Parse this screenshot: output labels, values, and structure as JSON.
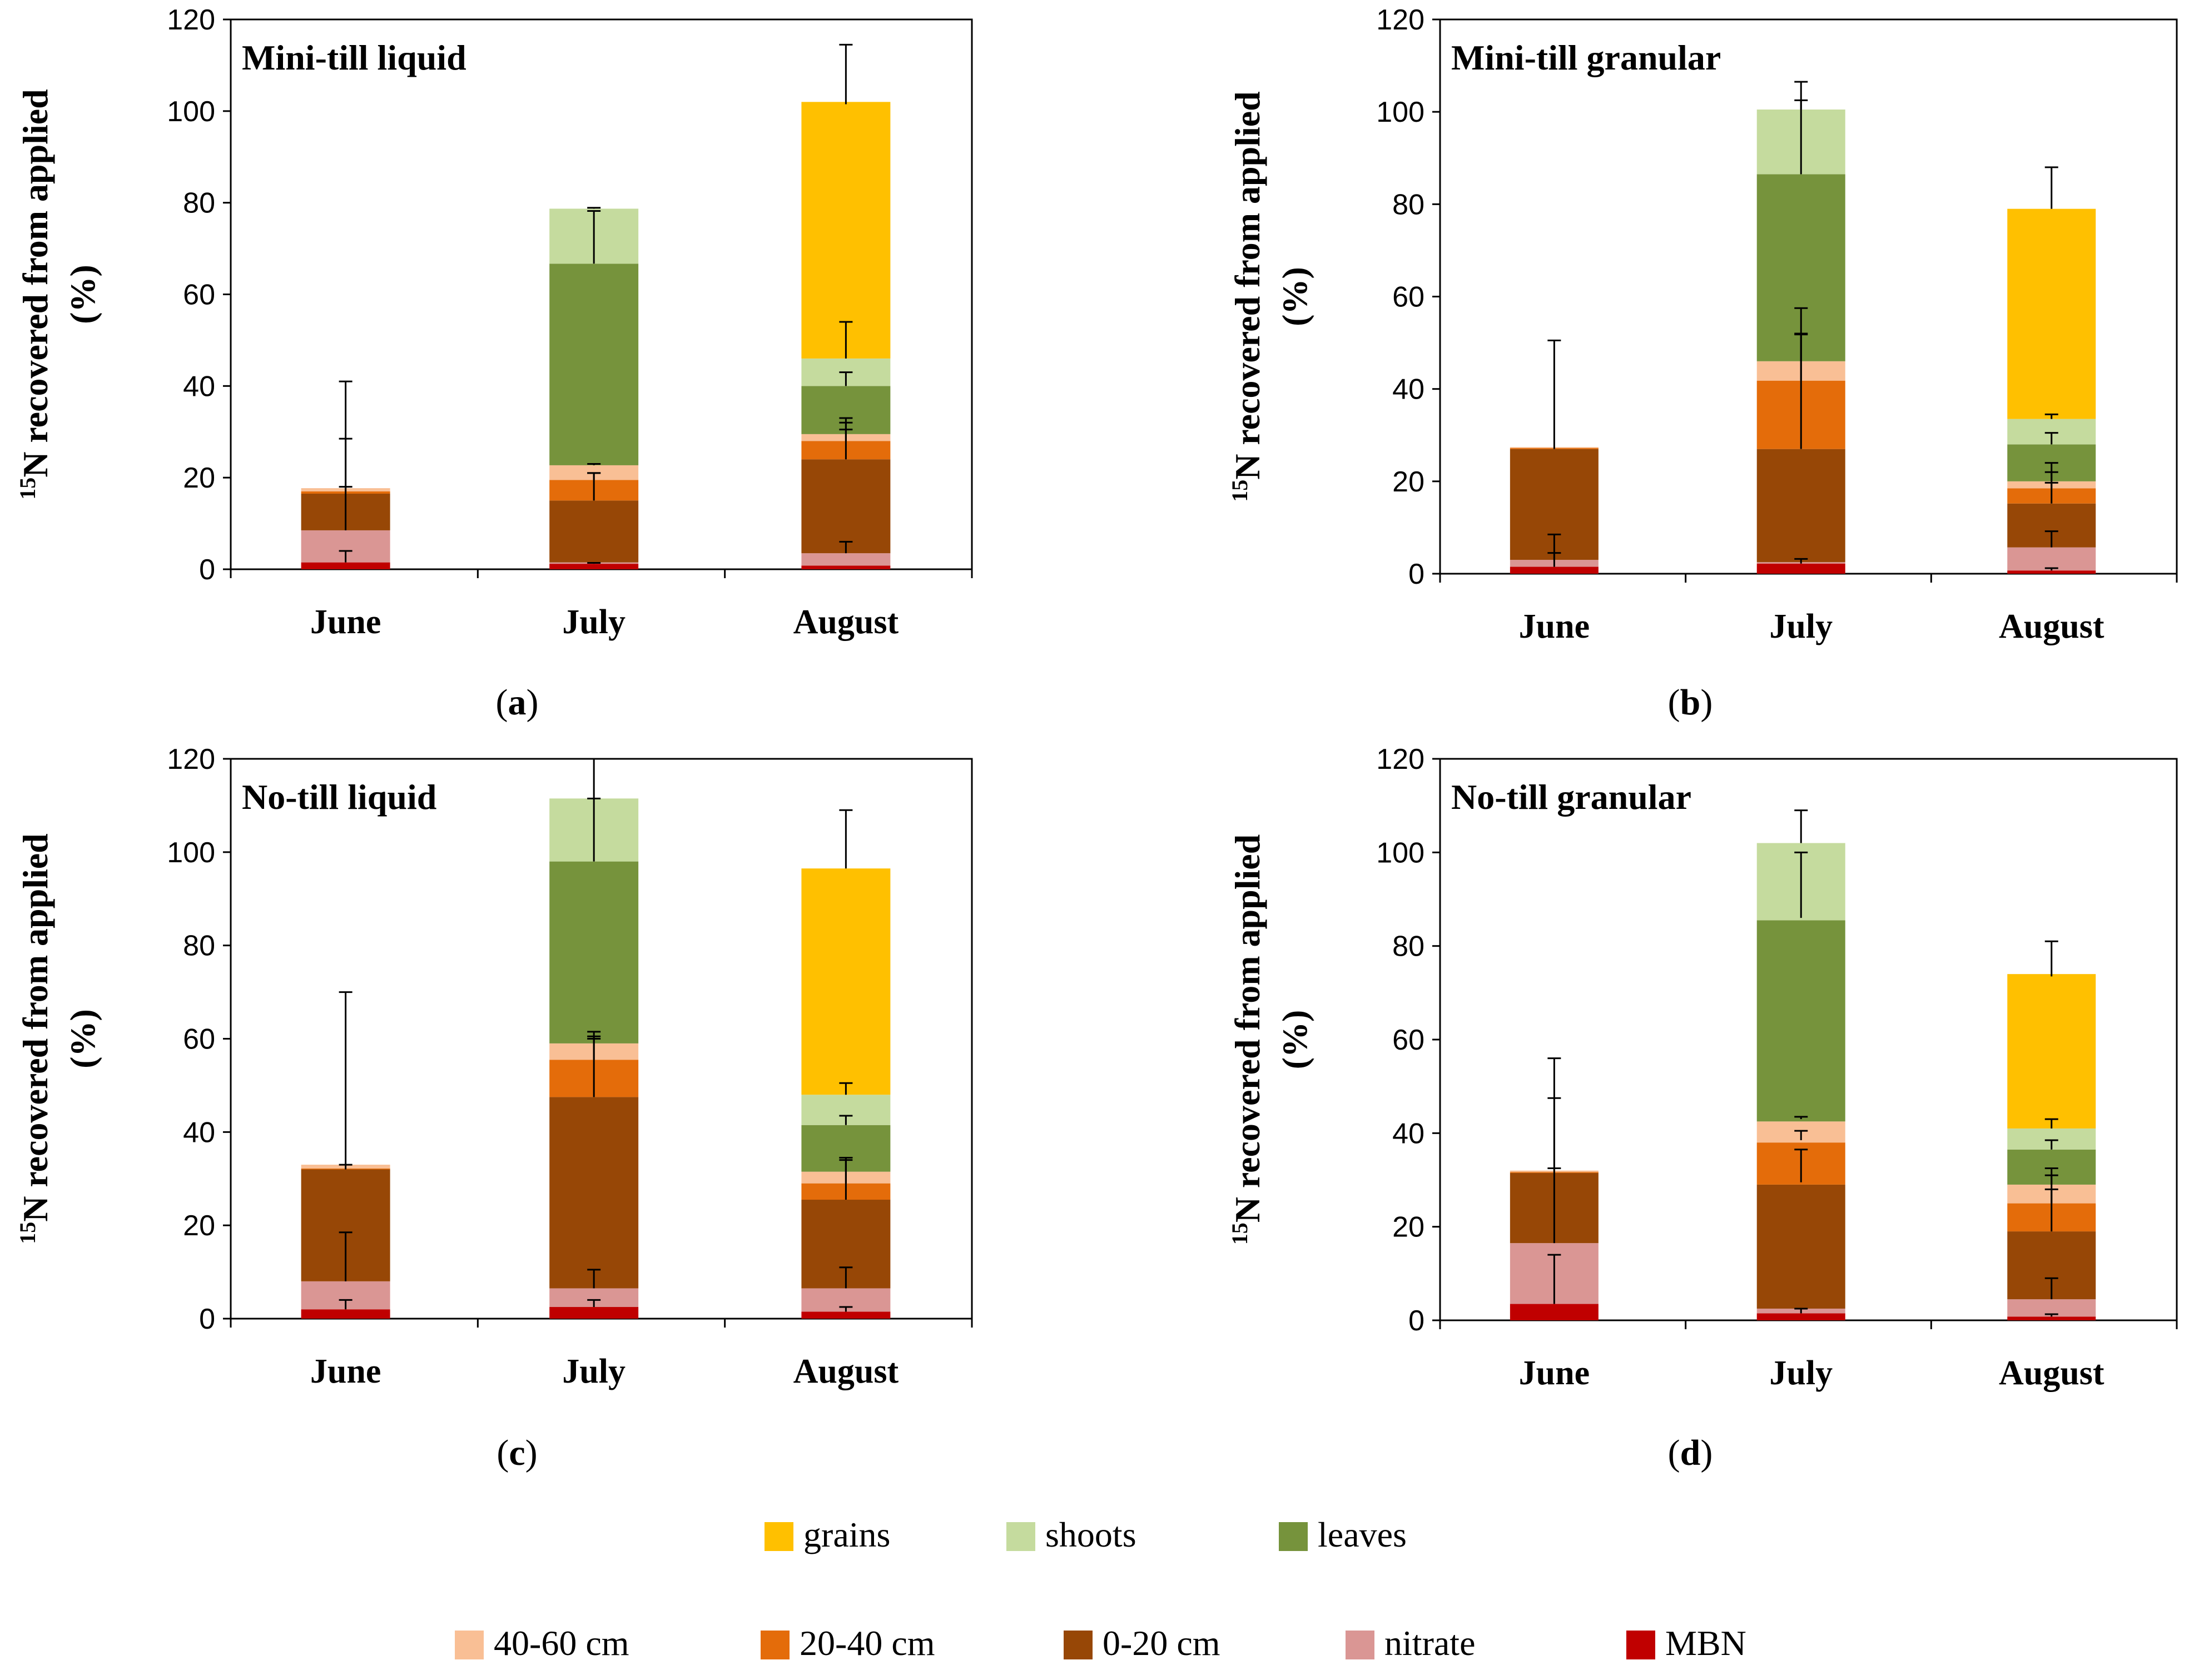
{
  "figure": {
    "y_axis_title_top": "N recovered from applied",
    "y_axis_title_superscript": "15",
    "y_axis_title_bottom": "(%)",
    "subfigure_labels": [
      "a",
      "b",
      "c",
      "d"
    ]
  },
  "legend": {
    "row1": [
      {
        "key": "grains",
        "label": "grains",
        "color": "#FFC000"
      },
      {
        "key": "shoots",
        "label": "shoots",
        "color": "#C5DB9E"
      },
      {
        "key": "leaves",
        "label": "leaves",
        "color": "#76933C"
      }
    ],
    "row2": [
      {
        "key": "d40_60",
        "label": "40-60 cm",
        "color": "#F9BF95"
      },
      {
        "key": "d20_40",
        "label": "20-40 cm",
        "color": "#E46C0A"
      },
      {
        "key": "d0_20",
        "label": "0-20 cm",
        "color": "#974706"
      },
      {
        "key": "nitrate",
        "label": "nitrate",
        "color": "#DA9694"
      },
      {
        "key": "mbn",
        "label": "MBN",
        "color": "#C00000"
      }
    ]
  },
  "chart_data": [
    {
      "type": "stacked-bar",
      "title": "Mini-till liquid",
      "subfigure": "a",
      "categories": [
        "June",
        "July",
        "August"
      ],
      "ylim": [
        0,
        120
      ],
      "yticks": [
        0,
        20,
        40,
        60,
        80,
        100,
        120
      ],
      "ylabel": "15N recovered from applied (%)",
      "series": [
        {
          "name": "MBN",
          "values": [
            1.5,
            1.2,
            0.8
          ]
        },
        {
          "name": "nitrate",
          "values": [
            7.0,
            0.3,
            2.7
          ]
        },
        {
          "name": "0-20 cm",
          "values": [
            8.0,
            13.5,
            20.5
          ]
        },
        {
          "name": "20-40 cm",
          "values": [
            0.5,
            4.5,
            4.0
          ]
        },
        {
          "name": "40-60 cm",
          "values": [
            0.7,
            3.2,
            1.5
          ]
        },
        {
          "name": "leaves",
          "values": [
            0,
            44.0,
            10.5
          ]
        },
        {
          "name": "shoots",
          "values": [
            0,
            12.0,
            6.0
          ]
        },
        {
          "name": "grains",
          "values": [
            0,
            0,
            56.0
          ]
        }
      ],
      "error_bars": [
        {
          "category": "June",
          "y": 1.5,
          "err": 2.5
        },
        {
          "category": "June",
          "y": 8.5,
          "err": 20.0
        },
        {
          "category": "June",
          "y": 17.0,
          "err": 1.0
        },
        {
          "category": "June",
          "y": 17.5,
          "err": 23.5
        },
        {
          "category": "July",
          "y": 1.2,
          "err": 0.2
        },
        {
          "category": "July",
          "y": 15.0,
          "err": 6.0
        },
        {
          "category": "July",
          "y": 19.5,
          "err": 1.5
        },
        {
          "category": "July",
          "y": 22.7,
          "err": 0.3
        },
        {
          "category": "July",
          "y": 66.7,
          "err": 11.5
        },
        {
          "category": "July",
          "y": 78.7,
          "err": 0.2
        },
        {
          "category": "August",
          "y": 3.5,
          "err": 2.5
        },
        {
          "category": "August",
          "y": 24.0,
          "err": 8.0
        },
        {
          "category": "August",
          "y": 28.0,
          "err": 5.0
        },
        {
          "category": "August",
          "y": 29.5,
          "err": 1.0
        },
        {
          "category": "August",
          "y": 40.0,
          "err": 3.0
        },
        {
          "category": "August",
          "y": 46.0,
          "err": 8.0
        },
        {
          "category": "August",
          "y": 101.5,
          "err": 13.0
        }
      ]
    },
    {
      "type": "stacked-bar",
      "title": "Mini-till granular",
      "subfigure": "b",
      "categories": [
        "June",
        "July",
        "August"
      ],
      "ylim": [
        0,
        120
      ],
      "yticks": [
        0,
        20,
        40,
        60,
        80,
        100,
        120
      ],
      "ylabel": "15N recovered from applied (%)",
      "series": [
        {
          "name": "MBN",
          "values": [
            1.5,
            2.2,
            0.7
          ]
        },
        {
          "name": "nitrate",
          "values": [
            1.5,
            0.3,
            5.0
          ]
        },
        {
          "name": "0-20 cm",
          "values": [
            24.0,
            24.5,
            9.5
          ]
        },
        {
          "name": "20-40 cm",
          "values": [
            0.2,
            14.8,
            3.3
          ]
        },
        {
          "name": "40-60 cm",
          "values": [
            0.2,
            4.2,
            1.5
          ]
        },
        {
          "name": "leaves",
          "values": [
            0,
            40.5,
            8.0
          ]
        },
        {
          "name": "shoots",
          "values": [
            0,
            14.0,
            5.5
          ]
        },
        {
          "name": "grains",
          "values": [
            0,
            0,
            45.5
          ]
        }
      ],
      "error_bars": [
        {
          "category": "June",
          "y": 1.5,
          "err": 3.0
        },
        {
          "category": "June",
          "y": 3.0,
          "err": 5.5
        },
        {
          "category": "June",
          "y": 27.0,
          "err": 23.5
        },
        {
          "category": "July",
          "y": 2.2,
          "err": 1.0
        },
        {
          "category": "July",
          "y": 27.0,
          "err": 25.0
        },
        {
          "category": "July",
          "y": 41.8,
          "err": 10.0
        },
        {
          "category": "July",
          "y": 46.0,
          "err": 11.5
        },
        {
          "category": "July",
          "y": 86.5,
          "err": 16.0
        },
        {
          "category": "July",
          "y": 100.5,
          "err": 6.0
        },
        {
          "category": "August",
          "y": 0.7,
          "err": 0.5
        },
        {
          "category": "August",
          "y": 5.7,
          "err": 3.5
        },
        {
          "category": "August",
          "y": 15.2,
          "err": 4.5
        },
        {
          "category": "August",
          "y": 18.5,
          "err": 5.5
        },
        {
          "category": "August",
          "y": 20.0,
          "err": 2.0
        },
        {
          "category": "August",
          "y": 28.0,
          "err": 2.5
        },
        {
          "category": "August",
          "y": 33.5,
          "err": 1.0
        },
        {
          "category": "August",
          "y": 79.0,
          "err": 9.0
        }
      ]
    },
    {
      "type": "stacked-bar",
      "title": "No-till liquid",
      "subfigure": "c",
      "categories": [
        "June",
        "July",
        "August"
      ],
      "ylim": [
        0,
        120
      ],
      "yticks": [
        0,
        20,
        40,
        60,
        80,
        100,
        120
      ],
      "ylabel": "15N recovered from applied (%)",
      "series": [
        {
          "name": "MBN",
          "values": [
            2.0,
            2.5,
            1.5
          ]
        },
        {
          "name": "nitrate",
          "values": [
            6.0,
            4.0,
            5.0
          ]
        },
        {
          "name": "0-20 cm",
          "values": [
            24.0,
            41.0,
            19.0
          ]
        },
        {
          "name": "20-40 cm",
          "values": [
            0.2,
            8.0,
            3.5
          ]
        },
        {
          "name": "40-60 cm",
          "values": [
            0.8,
            3.5,
            2.5
          ]
        },
        {
          "name": "leaves",
          "values": [
            0,
            39.0,
            10.0
          ]
        },
        {
          "name": "shoots",
          "values": [
            0,
            13.5,
            6.5
          ]
        },
        {
          "name": "grains",
          "values": [
            0,
            0,
            48.5
          ]
        }
      ],
      "error_bars": [
        {
          "category": "June",
          "y": 2.0,
          "err": 2.0
        },
        {
          "category": "June",
          "y": 8.0,
          "err": 10.5
        },
        {
          "category": "June",
          "y": 32.0,
          "err": 1.0
        },
        {
          "category": "June",
          "y": 33.0,
          "err": 37.0
        },
        {
          "category": "July",
          "y": 2.5,
          "err": 1.5
        },
        {
          "category": "July",
          "y": 6.5,
          "err": 4.0
        },
        {
          "category": "July",
          "y": 47.5,
          "err": 12.5
        },
        {
          "category": "July",
          "y": 55.5,
          "err": 5.0
        },
        {
          "category": "July",
          "y": 59.0,
          "err": 2.5
        },
        {
          "category": "July",
          "y": 98.0,
          "err": 13.5
        },
        {
          "category": "July",
          "y": 111.5,
          "err": 8.5
        },
        {
          "category": "August",
          "y": 1.5,
          "err": 1.0
        },
        {
          "category": "August",
          "y": 6.5,
          "err": 4.5
        },
        {
          "category": "August",
          "y": 25.5,
          "err": 9.0
        },
        {
          "category": "August",
          "y": 29.0,
          "err": 5.0
        },
        {
          "category": "August",
          "y": 31.5,
          "err": 3.0
        },
        {
          "category": "August",
          "y": 41.5,
          "err": 2.0
        },
        {
          "category": "August",
          "y": 48.0,
          "err": 2.5
        },
        {
          "category": "August",
          "y": 96.5,
          "err": 12.5
        }
      ]
    },
    {
      "type": "stacked-bar",
      "title": "No-till granular",
      "subfigure": "d",
      "categories": [
        "June",
        "July",
        "August"
      ],
      "ylim": [
        0,
        120
      ],
      "yticks": [
        0,
        20,
        40,
        60,
        80,
        100,
        120
      ],
      "ylabel": "15N recovered from applied (%)",
      "series": [
        {
          "name": "MBN",
          "values": [
            3.5,
            1.5,
            0.8
          ]
        },
        {
          "name": "nitrate",
          "values": [
            13.0,
            1.0,
            3.7
          ]
        },
        {
          "name": "0-20 cm",
          "values": [
            15.0,
            26.5,
            14.5
          ]
        },
        {
          "name": "20-40 cm",
          "values": [
            0.2,
            9.0,
            6.0
          ]
        },
        {
          "name": "40-60 cm",
          "values": [
            0.3,
            4.5,
            4.0
          ]
        },
        {
          "name": "leaves",
          "values": [
            0,
            43.0,
            7.5
          ]
        },
        {
          "name": "shoots",
          "values": [
            0,
            16.5,
            4.5
          ]
        },
        {
          "name": "grains",
          "values": [
            0,
            0,
            33.0
          ]
        }
      ],
      "error_bars": [
        {
          "category": "June",
          "y": 3.5,
          "err": 10.5
        },
        {
          "category": "June",
          "y": 16.5,
          "err": 31.0
        },
        {
          "category": "June",
          "y": 31.5,
          "err": 1.0
        },
        {
          "category": "June",
          "y": 32.0,
          "err": 24.0
        },
        {
          "category": "July",
          "y": 1.5,
          "err": 1.0
        },
        {
          "category": "July",
          "y": 29.5,
          "err": 7.0
        },
        {
          "category": "July",
          "y": 38.5,
          "err": 2.0
        },
        {
          "category": "July",
          "y": 43.0,
          "err": 0.5
        },
        {
          "category": "July",
          "y": 86.0,
          "err": 14.0
        },
        {
          "category": "July",
          "y": 102.0,
          "err": 7.0
        },
        {
          "category": "August",
          "y": 0.8,
          "err": 0.5
        },
        {
          "category": "August",
          "y": 4.5,
          "err": 4.5
        },
        {
          "category": "August",
          "y": 19.0,
          "err": 9.0
        },
        {
          "category": "August",
          "y": 25.0,
          "err": 6.0
        },
        {
          "category": "August",
          "y": 29.0,
          "err": 3.5
        },
        {
          "category": "August",
          "y": 36.5,
          "err": 2.0
        },
        {
          "category": "August",
          "y": 41.0,
          "err": 2.0
        },
        {
          "category": "August",
          "y": 73.5,
          "err": 7.5
        }
      ]
    }
  ]
}
